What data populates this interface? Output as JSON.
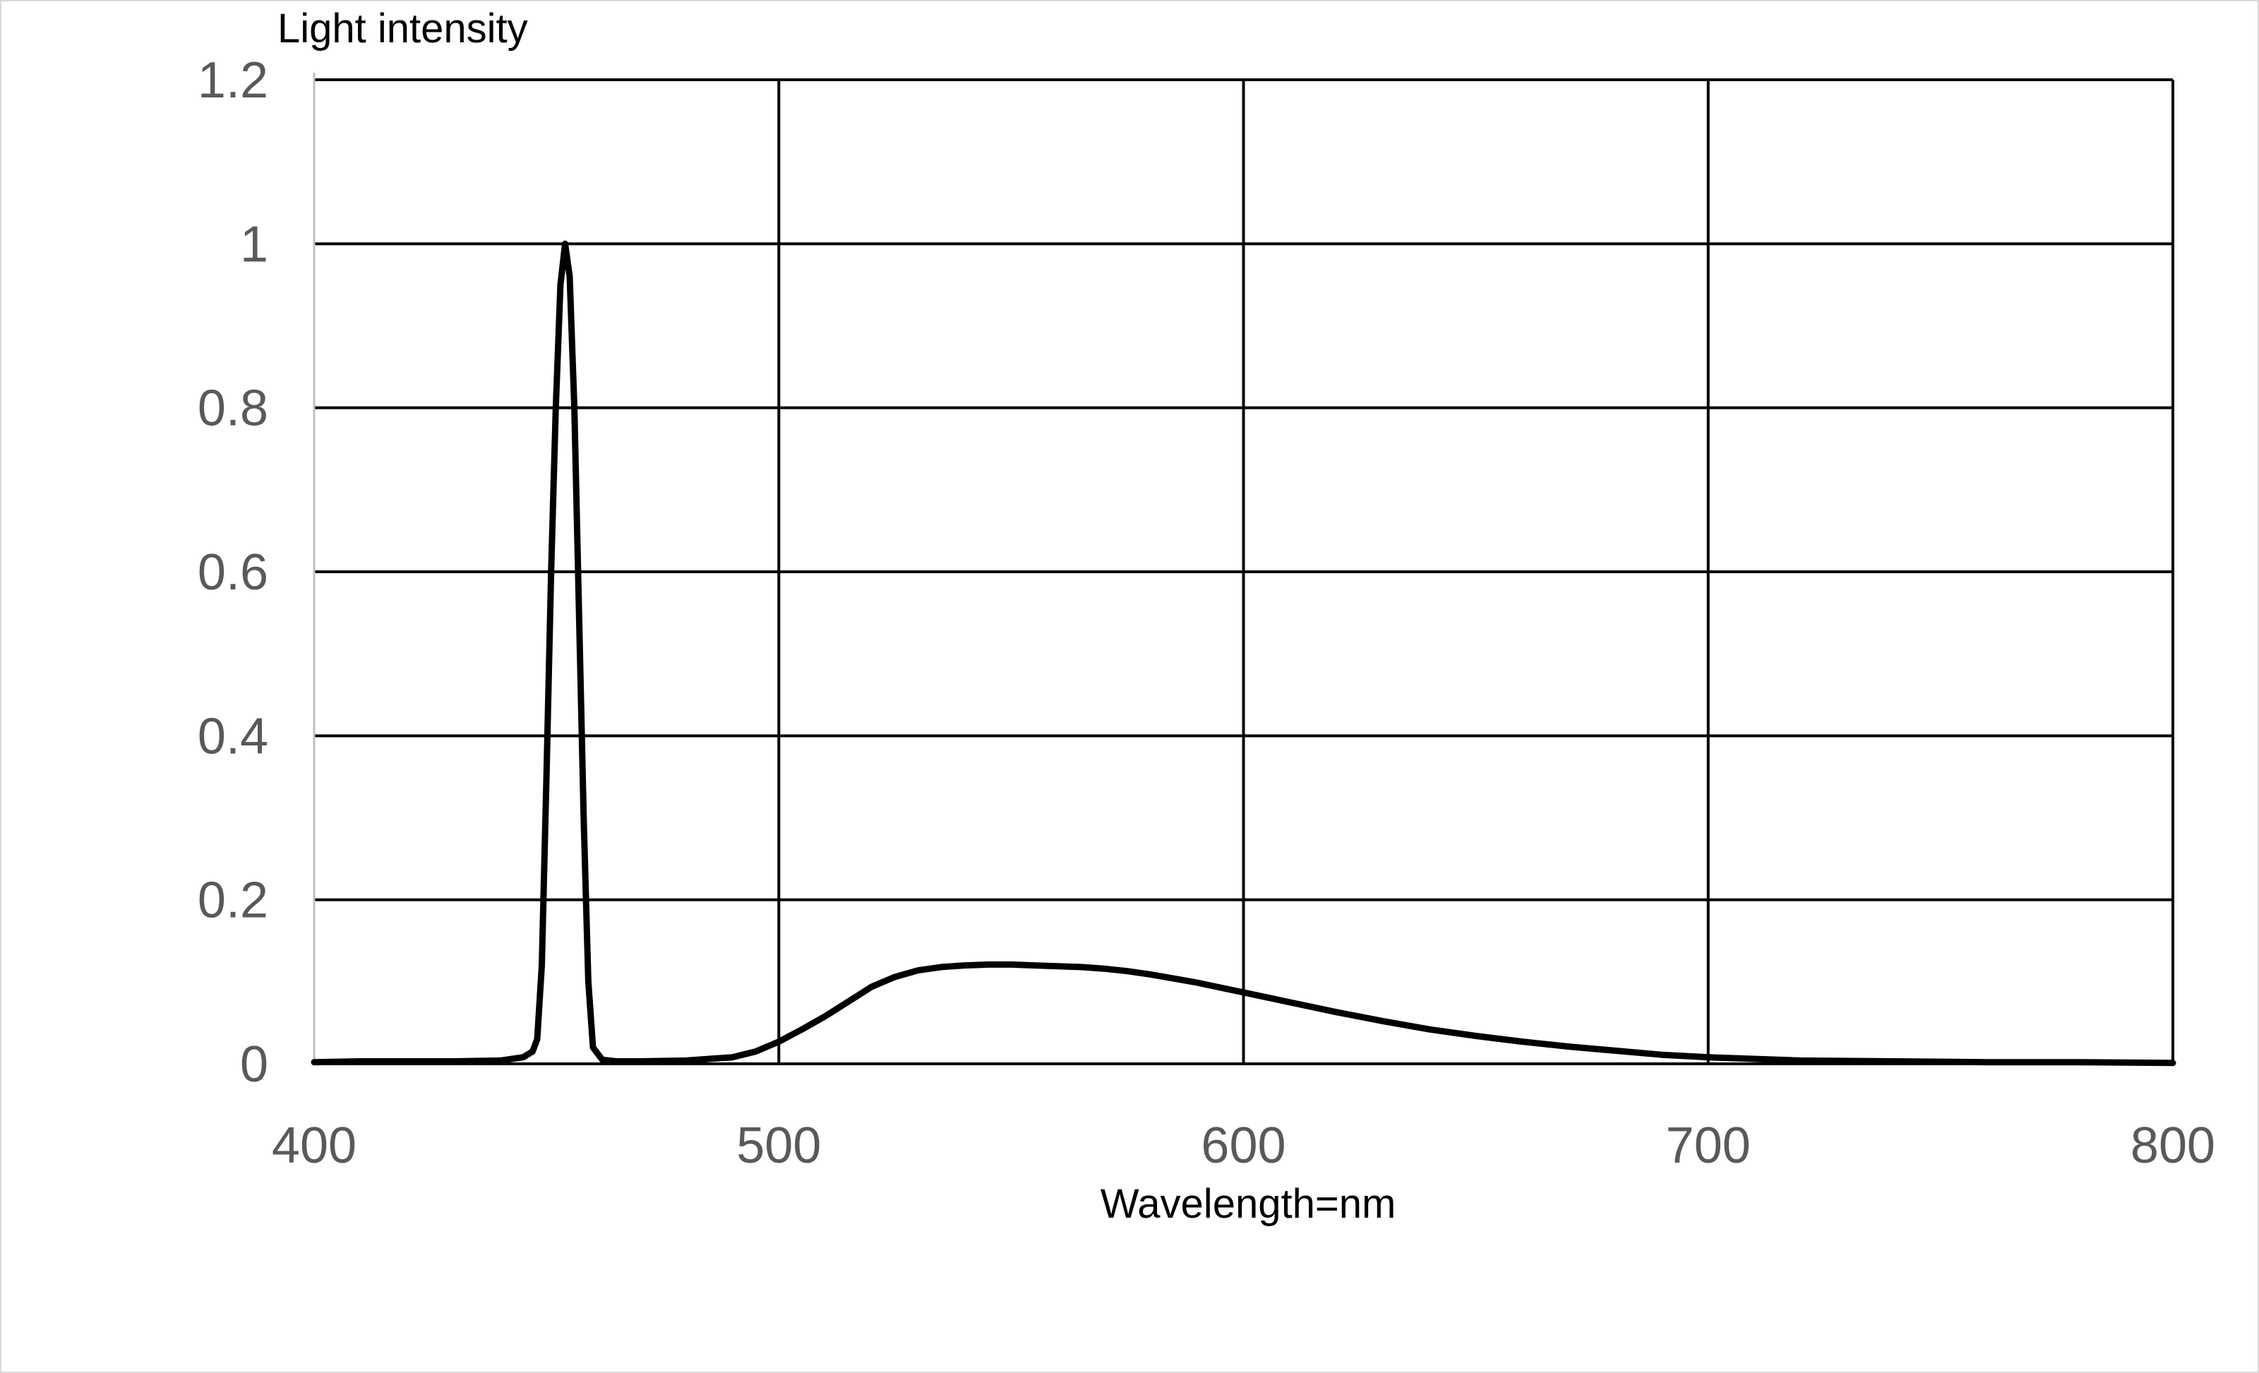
{
  "chart_data": {
    "type": "line",
    "title": "",
    "xlabel": "Wavelength=nm",
    "ylabel": "Light intensity",
    "xlim": [
      400,
      800
    ],
    "ylim": [
      0,
      1.2
    ],
    "x_ticks": [
      "400",
      "500",
      "600",
      "700",
      "800"
    ],
    "y_ticks": [
      "0",
      "0.2",
      "0.4",
      "0.6",
      "0.8",
      "1",
      "1.2"
    ],
    "grid": true,
    "legend": "none",
    "series": [
      {
        "color": "#000000",
        "x": [
          400,
          410,
          420,
          430,
          440,
          445,
          447,
          448,
          449,
          450,
          451,
          452,
          453,
          454,
          455,
          456,
          457,
          458,
          459,
          460,
          462,
          465,
          470,
          480,
          490,
          495,
          500,
          505,
          510,
          515,
          520,
          525,
          530,
          535,
          540,
          545,
          550,
          555,
          560,
          565,
          570,
          575,
          580,
          585,
          590,
          595,
          600,
          610,
          620,
          630,
          640,
          650,
          660,
          670,
          680,
          690,
          700,
          720,
          740,
          760,
          780,
          800
        ],
        "values": [
          0.002,
          0.003,
          0.003,
          0.003,
          0.004,
          0.008,
          0.015,
          0.03,
          0.12,
          0.35,
          0.6,
          0.8,
          0.95,
          1.0,
          0.96,
          0.8,
          0.55,
          0.3,
          0.1,
          0.02,
          0.005,
          0.003,
          0.003,
          0.004,
          0.008,
          0.015,
          0.027,
          0.042,
          0.058,
          0.076,
          0.094,
          0.106,
          0.114,
          0.118,
          0.12,
          0.121,
          0.121,
          0.12,
          0.119,
          0.118,
          0.116,
          0.113,
          0.109,
          0.104,
          0.099,
          0.093,
          0.087,
          0.075,
          0.063,
          0.052,
          0.042,
          0.034,
          0.027,
          0.021,
          0.016,
          0.011,
          0.008,
          0.004,
          0.003,
          0.002,
          0.002,
          0.001
        ]
      }
    ]
  }
}
